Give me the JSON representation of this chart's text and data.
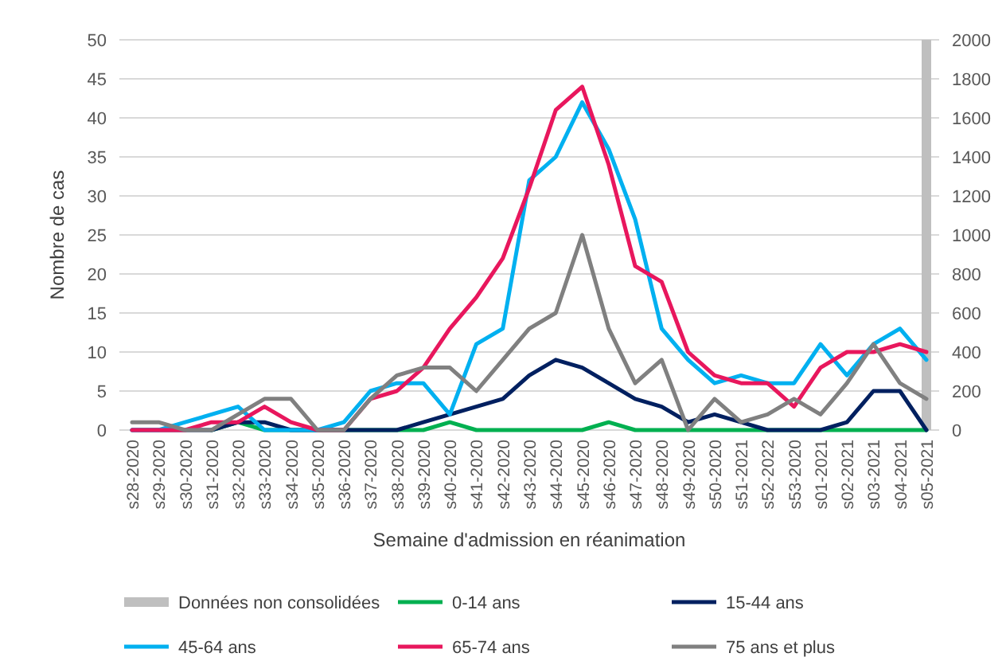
{
  "chart_data": {
    "type": "line",
    "xlabel": "Semaine d'admission en réanimation",
    "ylabel": "Nombre de cas",
    "categories": [
      "s28-2020",
      "s29-2020",
      "s30-2020",
      "s31-2020",
      "s32-2020",
      "s33-2020",
      "s34-2020",
      "s35-2020",
      "s36-2020",
      "s37-2020",
      "s38-2020",
      "s39-2020",
      "s40-2020",
      "s41-2020",
      "s42-2020",
      "s43-2020",
      "s44-2020",
      "s45-2020",
      "s46-2020",
      "s47-2020",
      "s48-2020",
      "s49-2020",
      "s50-2020",
      "s51-2021",
      "s52-2022",
      "s53-2020",
      "s01-2021",
      "s02-2021",
      "s03-2021",
      "s04-2021",
      "s05-2021"
    ],
    "ylim": [
      0,
      50
    ],
    "yticks": [
      0,
      5,
      10,
      15,
      20,
      25,
      30,
      35,
      40,
      45,
      50
    ],
    "y2lim": [
      0,
      2000
    ],
    "y2ticks": [
      0,
      200,
      400,
      600,
      800,
      1000,
      1200,
      1400,
      1600,
      1800,
      2000
    ],
    "grid": "y",
    "legend": "bottom",
    "line_style": "solid",
    "marker": "none",
    "series": [
      {
        "name": "Données non consolidées",
        "type": "bar",
        "axis": "y2",
        "color": "#bfbfbf",
        "values": [
          null,
          null,
          null,
          null,
          null,
          null,
          null,
          null,
          null,
          null,
          null,
          null,
          null,
          null,
          null,
          null,
          null,
          null,
          null,
          null,
          null,
          null,
          null,
          null,
          null,
          null,
          null,
          null,
          null,
          null,
          2000
        ]
      },
      {
        "name": "0-14 ans",
        "color": "#00b050",
        "values": [
          null,
          null,
          null,
          0,
          1,
          0,
          0,
          0,
          0,
          0,
          0,
          0,
          1,
          0,
          0,
          0,
          0,
          0,
          1,
          0,
          0,
          0,
          0,
          0,
          0,
          0,
          0,
          0,
          0,
          0,
          0
        ]
      },
      {
        "name": "15-44 ans",
        "color": "#002060",
        "values": [
          0,
          0,
          0,
          0,
          1,
          1,
          0,
          0,
          0,
          0,
          0,
          1,
          2,
          3,
          4,
          7,
          9,
          8,
          6,
          4,
          3,
          1,
          2,
          1,
          0,
          0,
          0,
          1,
          5,
          5,
          0
        ]
      },
      {
        "name": "45-64 ans",
        "color": "#00b0f0",
        "values": [
          0,
          0,
          1,
          2,
          3,
          0,
          0,
          0,
          1,
          5,
          6,
          6,
          2,
          11,
          13,
          32,
          35,
          42,
          36,
          27,
          13,
          9,
          6,
          7,
          6,
          6,
          11,
          7,
          11,
          13,
          9
        ]
      },
      {
        "name": "65-74 ans",
        "color": "#e8175d",
        "values": [
          0,
          0,
          0,
          1,
          1,
          3,
          1,
          0,
          0,
          4,
          5,
          8,
          13,
          17,
          22,
          31,
          41,
          44,
          34,
          21,
          19,
          10,
          7,
          6,
          6,
          3,
          8,
          10,
          10,
          11,
          10
        ]
      },
      {
        "name": "75 ans et plus",
        "color": "#808080",
        "values": [
          1,
          1,
          0,
          0,
          2,
          4,
          4,
          0,
          0,
          4,
          7,
          8,
          8,
          5,
          9,
          13,
          15,
          25,
          13,
          6,
          9,
          0,
          4,
          1,
          2,
          4,
          2,
          6,
          11,
          6,
          4
        ]
      }
    ]
  }
}
